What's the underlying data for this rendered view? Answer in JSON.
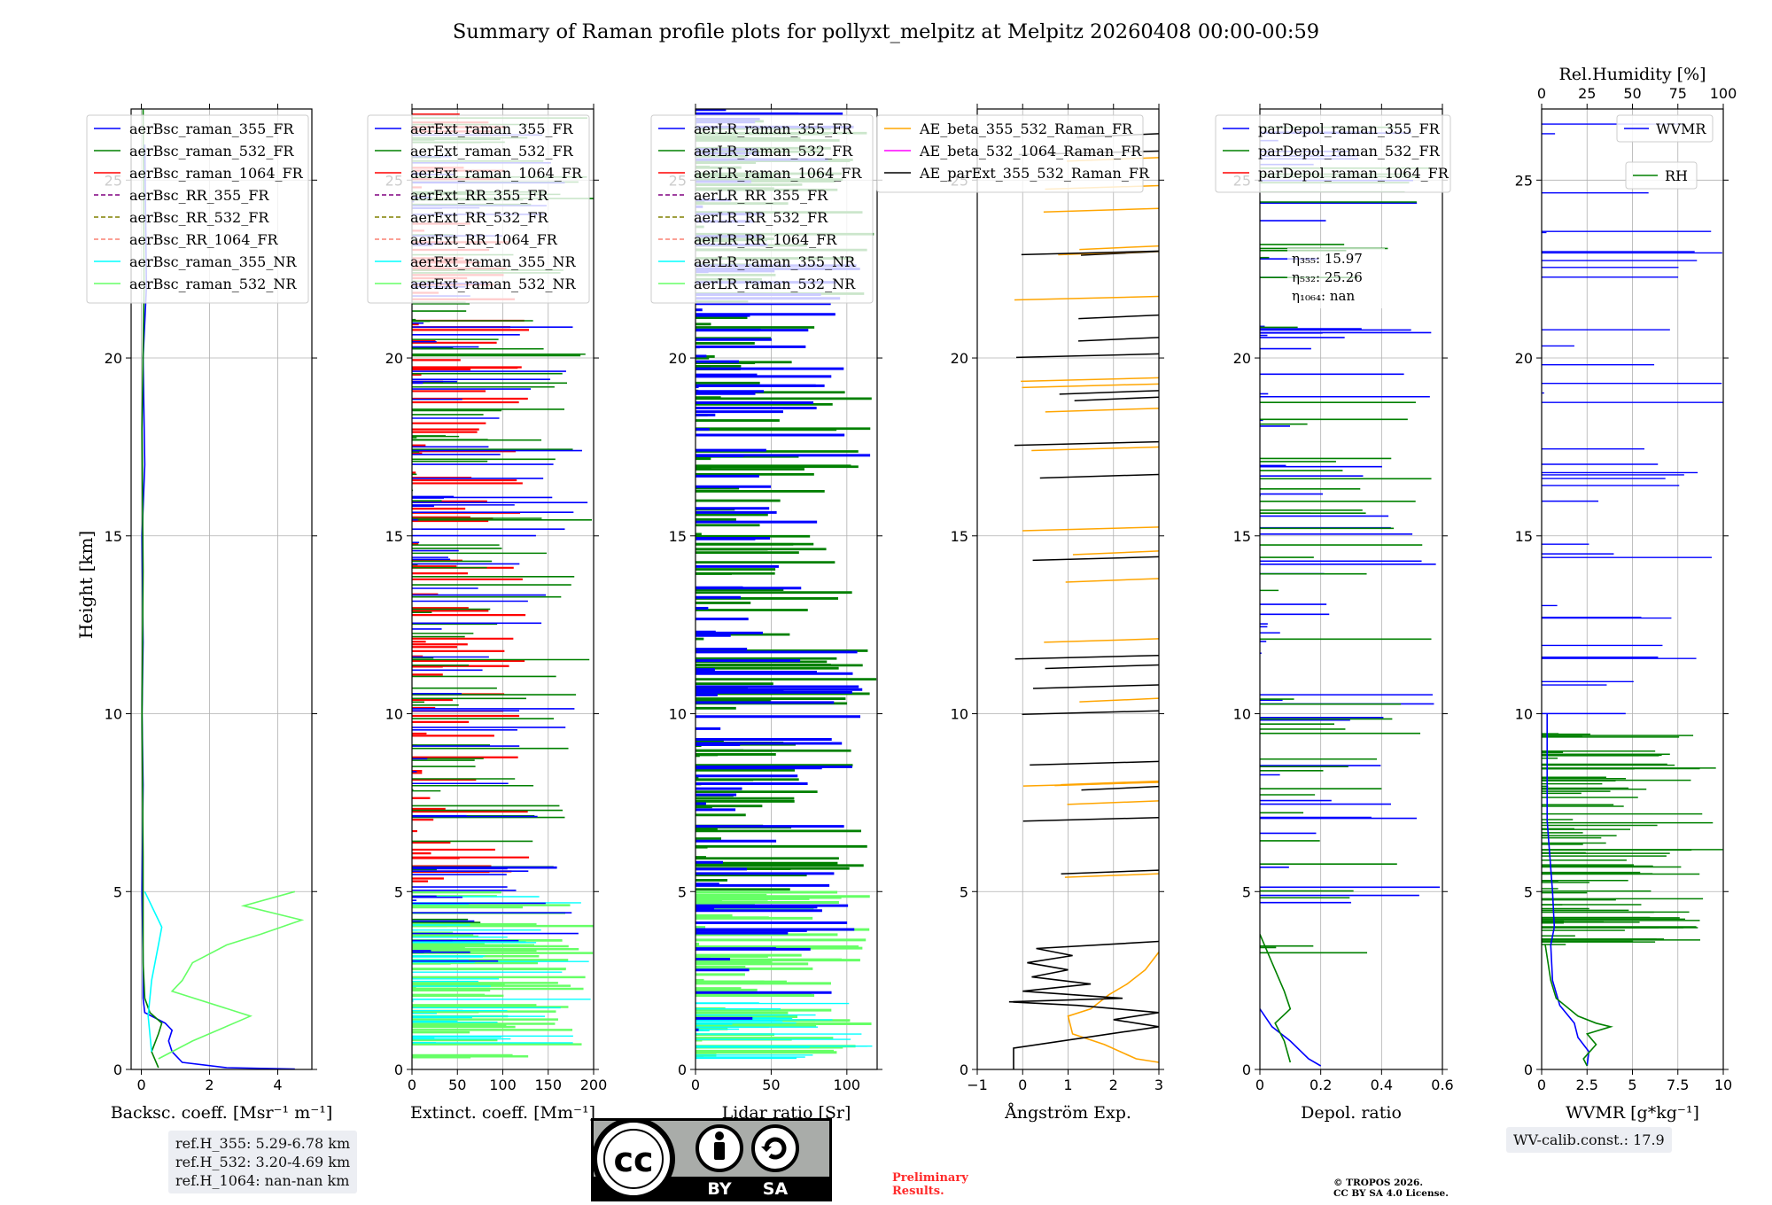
{
  "title": "Summary of Raman profile plots for pollyxt_melpitz at Melpitz 20260408 00:00-00:59",
  "chart_data": [
    {
      "type": "line",
      "panel": "backscatter",
      "xlabel": "Backsc. coeff. [Msr⁻¹ m⁻¹]",
      "ylabel": "Height [km]",
      "xlim": [
        -0.3,
        5
      ],
      "ylim": [
        0,
        27
      ],
      "xticks": [
        0,
        2,
        4
      ],
      "yticks": [
        0,
        5,
        10,
        15,
        20,
        25
      ],
      "grid": true,
      "legend_position": "top-left",
      "series": [
        {
          "name": "aerBsc_raman_355_FR",
          "color": "#0000ff",
          "style": "solid",
          "points": [
            [
              0.1,
              26
            ],
            [
              0.15,
              22
            ],
            [
              0.05,
              20
            ],
            [
              0.1,
              17
            ],
            [
              0.02,
              15
            ],
            [
              0.05,
              12
            ],
            [
              0.02,
              10
            ],
            [
              0.05,
              8
            ],
            [
              0.02,
              5
            ],
            [
              0.05,
              3
            ],
            [
              0.05,
              2
            ],
            [
              0.1,
              1.6
            ],
            [
              0.7,
              1.3
            ],
            [
              0.9,
              1.1
            ],
            [
              0.8,
              0.8
            ],
            [
              0.9,
              0.5
            ],
            [
              1.2,
              0.2
            ],
            [
              2.5,
              0.05
            ],
            [
              4.5,
              0.01
            ]
          ]
        },
        {
          "name": "aerBsc_raman_532_FR",
          "color": "#008000",
          "style": "solid",
          "points": [
            [
              0.05,
              27
            ],
            [
              0.08,
              22
            ],
            [
              0.02,
              18
            ],
            [
              0.05,
              14
            ],
            [
              0.02,
              10
            ],
            [
              0.05,
              6
            ],
            [
              0.05,
              3
            ],
            [
              0.1,
              2
            ],
            [
              0.25,
              1.6
            ],
            [
              0.6,
              1.3
            ],
            [
              0.5,
              1.0
            ],
            [
              0.3,
              0.5
            ],
            [
              0.5,
              0.05
            ]
          ]
        },
        {
          "name": "aerBsc_raman_1064_FR",
          "color": "#ff0000",
          "style": "solid",
          "points": []
        },
        {
          "name": "aerBsc_RR_355_FR",
          "color": "#800080",
          "style": "dashed",
          "points": []
        },
        {
          "name": "aerBsc_RR_532_FR",
          "color": "#808000",
          "style": "dashed",
          "points": []
        },
        {
          "name": "aerBsc_RR_1064_FR",
          "color": "#fa8072",
          "style": "dashed",
          "points": []
        },
        {
          "name": "aerBsc_raman_355_NR",
          "color": "#00ffff",
          "style": "solid",
          "points": [
            [
              0.1,
              5
            ],
            [
              0.6,
              4
            ],
            [
              0.5,
              3.5
            ],
            [
              0.3,
              2.5
            ],
            [
              0.2,
              1.5
            ],
            [
              0.3,
              0.5
            ]
          ]
        },
        {
          "name": "aerBsc_raman_532_NR",
          "color": "#66ff66",
          "style": "solid",
          "points": [
            [
              4.5,
              5
            ],
            [
              3,
              4.6
            ],
            [
              4.7,
              4.2
            ],
            [
              3.5,
              3.8
            ],
            [
              2.5,
              3.5
            ],
            [
              1.5,
              3
            ],
            [
              1.2,
              2.5
            ],
            [
              0.9,
              2.2
            ],
            [
              3.2,
              1.5
            ],
            [
              1.5,
              0.8
            ],
            [
              0.5,
              0.3
            ]
          ]
        }
      ]
    },
    {
      "type": "line",
      "panel": "extinction",
      "xlabel": "Extinct. coeff. [Mm⁻¹]",
      "xlim": [
        0,
        200
      ],
      "ylim": [
        0,
        27
      ],
      "xticks": [
        0,
        50,
        100,
        150,
        200
      ],
      "yticks": [
        0,
        5,
        10,
        15,
        20,
        25
      ],
      "grid": true,
      "legend_position": "top-left",
      "series": [
        {
          "name": "aerExt_raman_355_FR",
          "color": "#0000ff",
          "style": "solid"
        },
        {
          "name": "aerExt_raman_532_FR",
          "color": "#008000",
          "style": "solid"
        },
        {
          "name": "aerExt_raman_1064_FR",
          "color": "#ff0000",
          "style": "solid"
        },
        {
          "name": "aerExt_RR_355_FR",
          "color": "#800080",
          "style": "dashed"
        },
        {
          "name": "aerExt_RR_532_FR",
          "color": "#808000",
          "style": "dashed"
        },
        {
          "name": "aerExt_RR_1064_FR",
          "color": "#fa8072",
          "style": "dashed"
        },
        {
          "name": "aerExt_raman_355_NR",
          "color": "#00ffff",
          "style": "solid"
        },
        {
          "name": "aerExt_raman_532_NR",
          "color": "#66ff66",
          "style": "solid"
        }
      ]
    },
    {
      "type": "line",
      "panel": "lidar_ratio",
      "xlabel": "Lidar ratio [Sr]",
      "xlim": [
        0,
        120
      ],
      "ylim": [
        0,
        27
      ],
      "xticks": [
        0,
        50,
        100
      ],
      "yticks": [
        0,
        5,
        10,
        15,
        20,
        25
      ],
      "grid": true,
      "legend_position": "top-left",
      "series": [
        {
          "name": "aerLR_raman_355_FR",
          "color": "#0000ff",
          "style": "solid"
        },
        {
          "name": "aerLR_raman_532_FR",
          "color": "#008000",
          "style": "solid"
        },
        {
          "name": "aerLR_raman_1064_FR",
          "color": "#ff0000",
          "style": "solid"
        },
        {
          "name": "aerLR_RR_355_FR",
          "color": "#800080",
          "style": "dashed"
        },
        {
          "name": "aerLR_RR_532_FR",
          "color": "#808000",
          "style": "dashed"
        },
        {
          "name": "aerLR_RR_1064_FR",
          "color": "#fa8072",
          "style": "dashed"
        },
        {
          "name": "aerLR_raman_355_NR",
          "color": "#00ffff",
          "style": "solid"
        },
        {
          "name": "aerLR_raman_532_NR",
          "color": "#66ff66",
          "style": "solid"
        }
      ]
    },
    {
      "type": "line",
      "panel": "angstrom",
      "xlabel": "Ångström Exp.",
      "xlim": [
        -1,
        3
      ],
      "ylim": [
        0,
        27
      ],
      "xticks": [
        -1,
        0,
        1,
        2,
        3
      ],
      "yticks": [
        0,
        5,
        10,
        15,
        20,
        25
      ],
      "grid": true,
      "legend_position": "top",
      "series": [
        {
          "name": "AE_beta_355_532_Raman_FR",
          "color": "#ffa500",
          "style": "solid",
          "points": [
            [
              3,
              3.3
            ],
            [
              2.7,
              2.8
            ],
            [
              2.3,
              2.4
            ],
            [
              1.9,
              2.1
            ],
            [
              1.5,
              1.7
            ],
            [
              1.0,
              1.5
            ],
            [
              1.1,
              1.0
            ],
            [
              1.8,
              0.7
            ],
            [
              2.5,
              0.3
            ],
            [
              3,
              0.2
            ]
          ]
        },
        {
          "name": "AE_beta_532_1064_Raman_FR",
          "color": "#ff00ff",
          "style": "solid",
          "points": []
        },
        {
          "name": "AE_parExt_355_532_Raman_FR",
          "color": "#000000",
          "style": "solid",
          "points": [
            [
              3,
              3.6
            ],
            [
              0.3,
              3.4
            ],
            [
              1.1,
              3.2
            ],
            [
              0.1,
              3.0
            ],
            [
              1.0,
              2.8
            ],
            [
              0.2,
              2.6
            ],
            [
              1.5,
              2.4
            ],
            [
              0.0,
              2.2
            ],
            [
              2.2,
              2.0
            ],
            [
              -0.3,
              1.9
            ],
            [
              1.2,
              1.8
            ],
            [
              3,
              1.6
            ],
            [
              2.0,
              1.4
            ],
            [
              3,
              1.2
            ],
            [
              -0.2,
              0.6
            ],
            [
              -0.2,
              0.0
            ]
          ]
        }
      ]
    },
    {
      "type": "line",
      "panel": "depolarization",
      "xlabel": "Depol. ratio",
      "xlim": [
        0,
        0.6
      ],
      "ylim": [
        0,
        27
      ],
      "xticks": [
        0.0,
        0.2,
        0.4,
        0.6
      ],
      "yticks": [
        0,
        5,
        10,
        15,
        20,
        25
      ],
      "grid": true,
      "legend_position": "top-left",
      "series": [
        {
          "name": "parDepol_raman_355_FR",
          "color": "#0000ff",
          "style": "solid",
          "points": [
            [
              0.0,
              1.7
            ],
            [
              0.04,
              1.2
            ],
            [
              0.1,
              0.8
            ],
            [
              0.16,
              0.3
            ],
            [
              0.2,
              0.1
            ]
          ]
        },
        {
          "name": "parDepol_raman_532_FR",
          "color": "#008000",
          "style": "solid",
          "points": [
            [
              0.0,
              3.8
            ],
            [
              0.04,
              3.0
            ],
            [
              0.08,
              2.2
            ],
            [
              0.1,
              1.7
            ],
            [
              0.05,
              1.3
            ],
            [
              0.08,
              0.8
            ],
            [
              0.1,
              0.2
            ]
          ]
        },
        {
          "name": "parDepol_raman_1064_FR",
          "color": "#ff0000",
          "style": "solid",
          "points": []
        }
      ],
      "annotations": [
        "η₃₅₅: 15.97",
        "η₅₃₂: 25.26",
        "η₁₀₆₄: nan"
      ]
    },
    {
      "type": "line",
      "panel": "water_vapor",
      "xlabel": "WVMR [g*kg⁻¹]",
      "top_xlabel": "Rel.Humidity [%]",
      "xlim": [
        0,
        10
      ],
      "top_xlim": [
        0,
        100
      ],
      "ylim": [
        0,
        27
      ],
      "xticks": [
        0.0,
        2.5,
        5.0,
        7.5,
        10.0
      ],
      "top_xticks": [
        0,
        25,
        50,
        75,
        100
      ],
      "yticks": [
        0,
        5,
        10,
        15,
        20,
        25
      ],
      "grid": true,
      "legend_position": "top-right",
      "series": [
        {
          "name": "WVMR",
          "color": "#0000ff",
          "style": "solid",
          "points": [
            [
              0.3,
              10
            ],
            [
              0.3,
              7
            ],
            [
              0.6,
              5
            ],
            [
              0.7,
              4
            ],
            [
              0.5,
              3.5
            ],
            [
              0.6,
              2.5
            ],
            [
              1.0,
              1.8
            ],
            [
              1.8,
              1.3
            ],
            [
              2.0,
              0.9
            ],
            [
              2.6,
              0.5
            ],
            [
              2.5,
              0.1
            ]
          ]
        },
        {
          "name": "RH",
          "color": "#008000",
          "style": "solid",
          "points": [
            [
              0.2,
              3.5
            ],
            [
              0.5,
              2.5
            ],
            [
              0.8,
              2.0
            ],
            [
              2.0,
              1.5
            ],
            [
              3.0,
              1.3
            ],
            [
              3.8,
              1.2
            ],
            [
              2.5,
              1.0
            ],
            [
              3.0,
              0.7
            ],
            [
              2.3,
              0.3
            ],
            [
              2.5,
              0.1
            ]
          ]
        }
      ],
      "wv_calibration": "WV-calib.const.: 17.9"
    }
  ],
  "reference_heights": [
    "ref.H_355: 5.29-6.78 km",
    "ref.H_532: 3.20-4.69 km",
    "ref.H_1064: nan-nan km"
  ],
  "license_badge": {
    "left_icon": "cc",
    "labels": [
      "BY",
      "SA"
    ]
  },
  "preliminary": [
    "Preliminary",
    "Results."
  ],
  "copyright": [
    "© TROPOS 2026.",
    "CC BY SA 4.0 License."
  ]
}
